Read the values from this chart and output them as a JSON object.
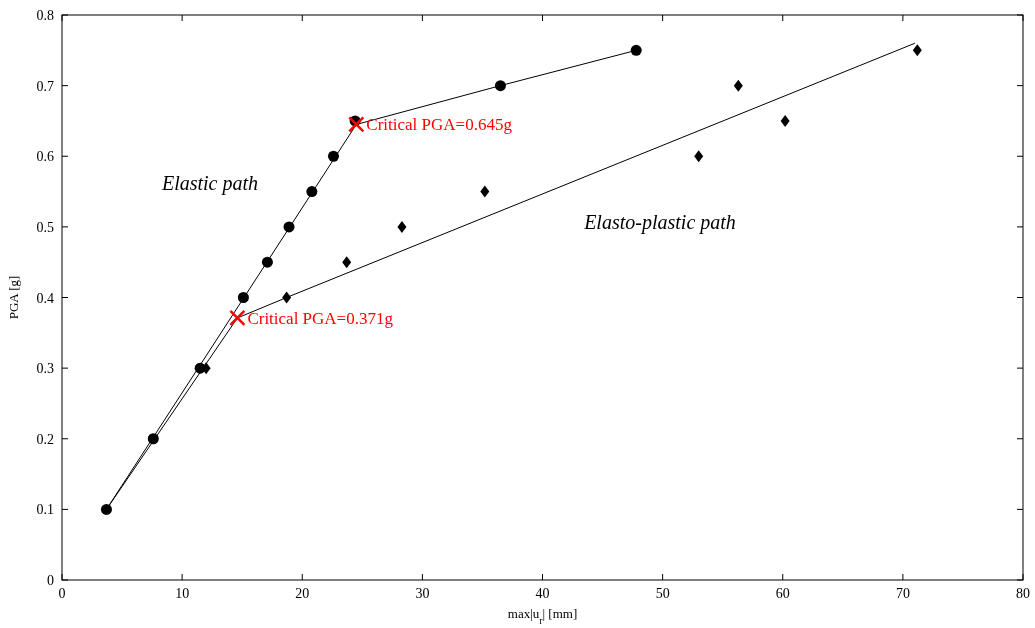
{
  "chart_data": {
    "type": "scatter",
    "xlabel": "max|u$_{r}$|  [mm]",
    "ylabel": "PGA  [g]",
    "xlim": [
      0,
      80
    ],
    "ylim": [
      0,
      0.8
    ],
    "xticks": [
      0,
      10,
      20,
      30,
      40,
      50,
      60,
      70,
      80
    ],
    "yticks": [
      0,
      0.1,
      0.2,
      0.3,
      0.4,
      0.5,
      0.6,
      0.7,
      0.8
    ],
    "grid": false,
    "series": [
      {
        "type": "line",
        "color": "#000000",
        "marker": "none",
        "x": [
          3.7,
          24.5,
          36.5,
          47.8
        ],
        "values": [
          0.1,
          0.645,
          0.7,
          0.75
        ]
      },
      {
        "type": "line",
        "color": "#000000",
        "marker": "none",
        "x": [
          3.7,
          14.6,
          18.7,
          71
        ],
        "values": [
          0.1,
          0.371,
          0.4,
          0.76
        ]
      },
      {
        "color": "#000000",
        "marker": "diamond",
        "x": [
          12.0,
          18.7,
          23.7,
          28.3,
          35.2,
          53.0,
          56.3,
          60.2,
          71.2
        ],
        "values": [
          0.3,
          0.4,
          0.45,
          0.5,
          0.55,
          0.6,
          0.7,
          0.65,
          0.75
        ]
      },
      {
        "color": "#000000",
        "marker": "circle",
        "x": [
          3.7,
          7.6,
          11.5,
          15.1,
          17.1,
          18.9,
          20.8,
          22.6,
          24.4,
          36.5,
          47.8
        ],
        "values": [
          0.1,
          0.2,
          0.3,
          0.4,
          0.45,
          0.5,
          0.55,
          0.6,
          0.65,
          0.7,
          0.75
        ]
      },
      {
        "color": "#ff0000",
        "marker": "cross",
        "x": [
          24.5,
          14.6
        ],
        "values": [
          0.645,
          0.371
        ]
      }
    ],
    "annotations": [
      {
        "text": "Critical PGA=0.645g",
        "x": 24.5,
        "y": 0.645
      },
      {
        "text": "Critical PGA=0.371g",
        "x": 14.6,
        "y": 0.371
      },
      "Elastic path",
      "Elasto-plastic path"
    ]
  }
}
